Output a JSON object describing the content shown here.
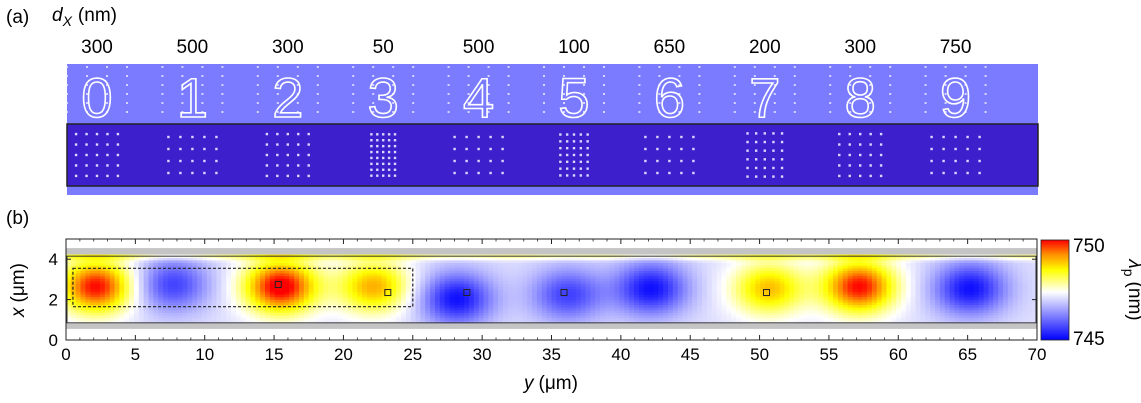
{
  "panel_a": {
    "label": "(a)",
    "axis_var": "d",
    "axis_sub": "X",
    "axis_unit": "(nm)",
    "columns": [
      {
        "digit": "0",
        "spacing": "300"
      },
      {
        "digit": "1",
        "spacing": "500"
      },
      {
        "digit": "2",
        "spacing": "300"
      },
      {
        "digit": "3",
        "spacing": "50"
      },
      {
        "digit": "4",
        "spacing": "500"
      },
      {
        "digit": "5",
        "spacing": "100"
      },
      {
        "digit": "6",
        "spacing": "650"
      },
      {
        "digit": "7",
        "spacing": "200"
      },
      {
        "digit": "8",
        "spacing": "300"
      },
      {
        "digit": "9",
        "spacing": "750"
      }
    ],
    "colors": {
      "light_band": "#7b7bff",
      "waveguide": "#3d20cc",
      "dot": "#d8d8ff"
    }
  },
  "panel_b": {
    "label": "(b)",
    "colorbar": {
      "max_label": "750",
      "min_label": "745",
      "label_symbol": "λ",
      "label_sub": "p",
      "label_unit": "(nm)",
      "range": [
        745,
        750
      ],
      "colormap": [
        "#0000ff",
        "#ffffff",
        "#ffff00",
        "#ff8c00",
        "#ff0000"
      ]
    }
  },
  "chart_data": {
    "type": "heatmap",
    "xlabel_var": "y",
    "xlabel_unit": "(μm)",
    "ylabel_var": "x",
    "ylabel_unit": "(μm)",
    "xlim": [
      0,
      70
    ],
    "ylim": [
      0,
      5
    ],
    "xticks": [
      0,
      5,
      10,
      15,
      20,
      25,
      30,
      35,
      40,
      45,
      50,
      55,
      60,
      65,
      70
    ],
    "yticks": [
      0,
      2,
      4
    ],
    "value_range": [
      745,
      750
    ],
    "color_label": "λp (nm)",
    "hot_spots": [
      {
        "y": 2.0,
        "x": 2.6,
        "value": 749.6
      },
      {
        "y": 7.5,
        "x": 2.7,
        "value": 745.8
      },
      {
        "y": 15.3,
        "x": 2.6,
        "value": 749.8
      },
      {
        "y": 22.0,
        "x": 2.6,
        "value": 748.8
      },
      {
        "y": 28.0,
        "x": 2.0,
        "value": 745.4
      },
      {
        "y": 36.0,
        "x": 2.2,
        "value": 745.8
      },
      {
        "y": 42.0,
        "x": 2.5,
        "value": 745.4
      },
      {
        "y": 50.5,
        "x": 2.5,
        "value": 748.7
      },
      {
        "y": 57.0,
        "x": 2.6,
        "value": 749.6
      },
      {
        "y": 65.0,
        "x": 2.5,
        "value": 745.4
      }
    ],
    "markers": [
      {
        "y": 15.3,
        "x": 2.75
      },
      {
        "y": 23.2,
        "x": 2.35
      },
      {
        "y": 28.9,
        "x": 2.35
      },
      {
        "y": 35.9,
        "x": 2.35
      },
      {
        "y": 50.5,
        "x": 2.35
      }
    ],
    "dashed_box": {
      "y0": 0.5,
      "y1": 25.0,
      "x0": 1.65,
      "x1": 3.55
    },
    "gray_bands": [
      {
        "x0": 0.55,
        "x1": 0.85
      },
      {
        "x0": 4.15,
        "x1": 4.55
      }
    ]
  }
}
